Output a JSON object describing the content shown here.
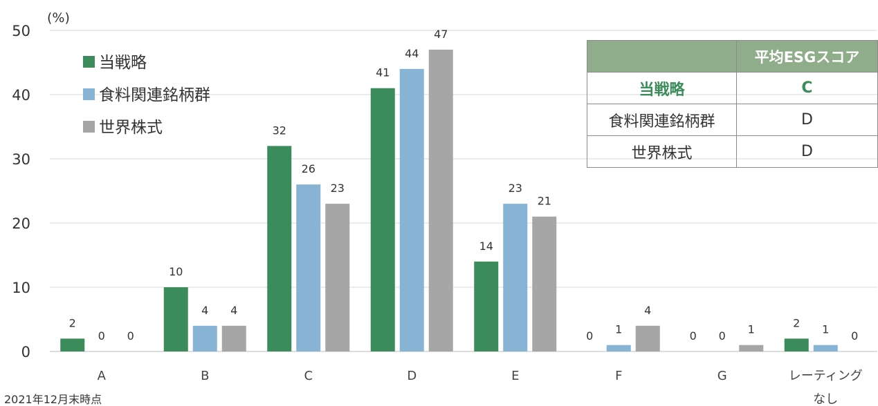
{
  "chart_data": {
    "type": "bar",
    "unit": "(%)",
    "categories": [
      "A",
      "B",
      "C",
      "D",
      "E",
      "F",
      "G",
      "レーティング\nなし"
    ],
    "ylim": [
      0,
      50
    ],
    "yticks": [
      0,
      10,
      20,
      30,
      40,
      50
    ],
    "grid": true,
    "legend_position": "top-left",
    "series": [
      {
        "name": "当戦略",
        "color": "#3c8c5b",
        "values": [
          2,
          10,
          32,
          41,
          14,
          0,
          0,
          2
        ]
      },
      {
        "name": "食料関連銘柄群",
        "color": "#87b4d4",
        "values": [
          0,
          4,
          26,
          44,
          23,
          1,
          0,
          1
        ]
      },
      {
        "name": "世界株式",
        "color": "#a6a6a6",
        "values": [
          0,
          4,
          23,
          47,
          21,
          4,
          1,
          0
        ]
      }
    ],
    "footnote": "2021年12月末時点"
  },
  "table": {
    "header": [
      "",
      "平均ESGスコア"
    ],
    "rows": [
      {
        "label": "当戦略",
        "value": "C"
      },
      {
        "label": "食料関連銘柄群",
        "value": "D"
      },
      {
        "label": "世界株式",
        "value": "D"
      }
    ]
  }
}
